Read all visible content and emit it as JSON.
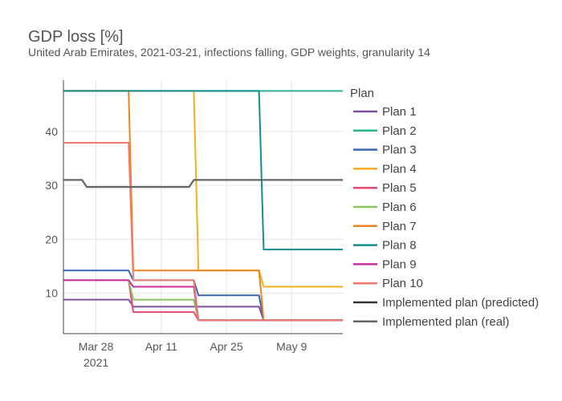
{
  "chart_data": {
    "type": "line",
    "title": "GDP loss [%]",
    "subtitle": "United Arab Emirates, 2021-03-21, infections falling, GDP weights, granularity 14",
    "xlabel": "",
    "ylabel": "",
    "x_range": [
      "2021-03-21",
      "2021-05-20"
    ],
    "ylim": [
      2.5,
      49.5
    ],
    "x_ticks": [
      {
        "date": "2021-03-28",
        "label": "Mar 28",
        "sublabel": "2021"
      },
      {
        "date": "2021-04-11",
        "label": "Apr 11",
        "sublabel": ""
      },
      {
        "date": "2021-04-25",
        "label": "Apr 25",
        "sublabel": ""
      },
      {
        "date": "2021-05-09",
        "label": "May 9",
        "sublabel": ""
      }
    ],
    "y_ticks": [
      10,
      20,
      30,
      40
    ],
    "grid": true,
    "legend": {
      "title": "Plan",
      "placement": "right"
    },
    "series": [
      {
        "name": "Plan 1",
        "color": "#7b4f9e",
        "step": true,
        "points": [
          [
            "2021-03-21",
            8.8
          ],
          [
            "2021-04-04",
            8.8
          ],
          [
            "2021-04-05",
            7.5
          ],
          [
            "2021-05-02",
            7.5
          ],
          [
            "2021-05-03",
            5.0
          ],
          [
            "2021-05-20",
            5.0
          ]
        ]
      },
      {
        "name": "Plan 2",
        "color": "#2bb58f",
        "step": true,
        "points": [
          [
            "2021-03-21",
            47.5
          ],
          [
            "2021-05-20",
            47.5
          ]
        ]
      },
      {
        "name": "Plan 3",
        "color": "#3a66b0",
        "step": true,
        "points": [
          [
            "2021-03-21",
            14.2
          ],
          [
            "2021-04-04",
            14.2
          ],
          [
            "2021-04-05",
            12.4
          ],
          [
            "2021-04-18",
            12.4
          ],
          [
            "2021-04-19",
            9.6
          ],
          [
            "2021-05-02",
            9.6
          ],
          [
            "2021-05-03",
            5.0
          ],
          [
            "2021-05-20",
            5.0
          ]
        ]
      },
      {
        "name": "Plan 4",
        "color": "#f2b01e",
        "step": true,
        "points": [
          [
            "2021-03-21",
            47.5
          ],
          [
            "2021-04-18",
            47.5
          ],
          [
            "2021-04-19",
            14.2
          ],
          [
            "2021-05-02",
            14.2
          ],
          [
            "2021-05-03",
            11.2
          ],
          [
            "2021-05-20",
            11.2
          ]
        ]
      },
      {
        "name": "Plan 5",
        "color": "#e8496f",
        "step": true,
        "points": [
          [
            "2021-03-21",
            12.4
          ],
          [
            "2021-04-04",
            12.4
          ],
          [
            "2021-04-05",
            6.5
          ],
          [
            "2021-04-18",
            6.5
          ],
          [
            "2021-04-19",
            5.0
          ],
          [
            "2021-05-20",
            5.0
          ]
        ]
      },
      {
        "name": "Plan 6",
        "color": "#8cc35e",
        "step": true,
        "points": [
          [
            "2021-03-21",
            12.4
          ],
          [
            "2021-04-04",
            12.4
          ],
          [
            "2021-04-05",
            8.8
          ],
          [
            "2021-04-18",
            8.8
          ],
          [
            "2021-04-19",
            5.0
          ],
          [
            "2021-05-20",
            5.0
          ]
        ]
      },
      {
        "name": "Plan 7",
        "color": "#ee8322",
        "step": true,
        "points": [
          [
            "2021-03-21",
            47.5
          ],
          [
            "2021-04-04",
            47.5
          ],
          [
            "2021-04-05",
            14.2
          ],
          [
            "2021-05-02",
            14.2
          ],
          [
            "2021-05-03",
            5.0
          ],
          [
            "2021-05-20",
            5.0
          ]
        ]
      },
      {
        "name": "Plan 8",
        "color": "#138f8f",
        "step": true,
        "points": [
          [
            "2021-03-21",
            47.5
          ],
          [
            "2021-05-02",
            47.5
          ],
          [
            "2021-05-03",
            18.1
          ],
          [
            "2021-05-20",
            18.1
          ]
        ]
      },
      {
        "name": "Plan 9",
        "color": "#c8319b",
        "step": true,
        "points": [
          [
            "2021-03-21",
            12.4
          ],
          [
            "2021-04-04",
            12.4
          ],
          [
            "2021-04-05",
            11.2
          ],
          [
            "2021-04-18",
            11.2
          ],
          [
            "2021-04-19",
            5.0
          ],
          [
            "2021-05-20",
            5.0
          ]
        ]
      },
      {
        "name": "Plan 10",
        "color": "#f07a70",
        "step": true,
        "points": [
          [
            "2021-03-21",
            37.9
          ],
          [
            "2021-04-04",
            37.9
          ],
          [
            "2021-04-05",
            12.4
          ],
          [
            "2021-04-18",
            12.4
          ],
          [
            "2021-04-19",
            5.0
          ],
          [
            "2021-05-20",
            5.0
          ]
        ]
      },
      {
        "name": "Implemented plan (predicted)",
        "color": "#333333",
        "step": false,
        "points": [
          [
            "2021-03-21",
            31.0
          ],
          [
            "2021-03-25",
            31.0
          ],
          [
            "2021-03-26",
            29.7
          ],
          [
            "2021-04-17",
            29.7
          ],
          [
            "2021-04-18",
            31.0
          ],
          [
            "2021-05-20",
            31.0
          ]
        ]
      },
      {
        "name": "Implemented plan (real)",
        "color": "#666666",
        "step": false,
        "points": [
          [
            "2021-03-21",
            31.0
          ],
          [
            "2021-03-25",
            31.0
          ],
          [
            "2021-03-26",
            29.7
          ],
          [
            "2021-04-17",
            29.7
          ],
          [
            "2021-04-18",
            31.0
          ],
          [
            "2021-05-20",
            31.0
          ]
        ]
      }
    ]
  }
}
